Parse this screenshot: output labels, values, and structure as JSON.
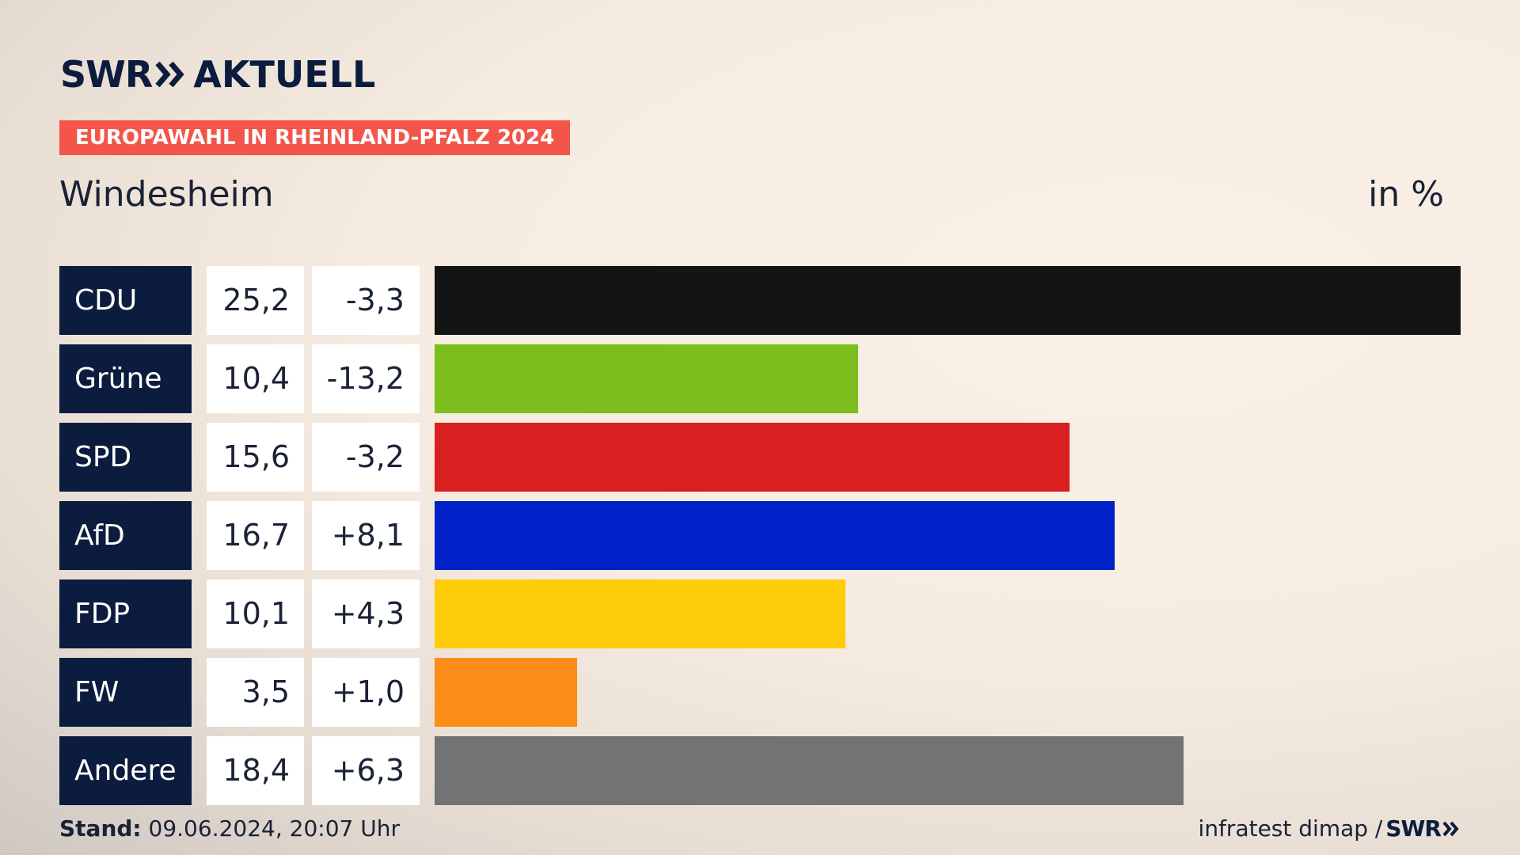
{
  "header": {
    "logo_brand": "SWR",
    "logo_sub": "AKTUELL",
    "badge": "EUROPAWAHL IN RHEINLAND-PFALZ 2024",
    "place": "Windesheim",
    "unit": "in %"
  },
  "chart_data": {
    "type": "bar",
    "orientation": "horizontal",
    "categories": [
      "CDU",
      "Grüne",
      "SPD",
      "AfD",
      "FDP",
      "FW",
      "Andere"
    ],
    "values": [
      25.2,
      10.4,
      15.6,
      16.7,
      10.1,
      3.5,
      18.4
    ],
    "value_labels": [
      "25,2",
      "10,4",
      "15,6",
      "16,7",
      "10,1",
      "3,5",
      "18,4"
    ],
    "diff_labels": [
      "-3,3",
      "-13,2",
      "-3,2",
      "+8,1",
      "+4,3",
      "+1,0",
      "+6,3"
    ],
    "diff_values": [
      -3.3,
      -13.2,
      -3.2,
      8.1,
      4.3,
      1.0,
      6.3
    ],
    "colors": [
      "#141414",
      "#7bbe1e",
      "#d91f1f",
      "#0021c8",
      "#ffcc0a",
      "#fb8d19",
      "#737373"
    ],
    "xlim": [
      0,
      25.2
    ],
    "grid": false,
    "legend": "none"
  },
  "footer": {
    "stand_label": "Stand:",
    "stand_value": "09.06.2024, 20:07 Uhr",
    "source": "infratest dimap /",
    "source_brand": "SWR"
  },
  "colors": {
    "navy": "#0c1c3e",
    "badge": "#f4554a"
  }
}
